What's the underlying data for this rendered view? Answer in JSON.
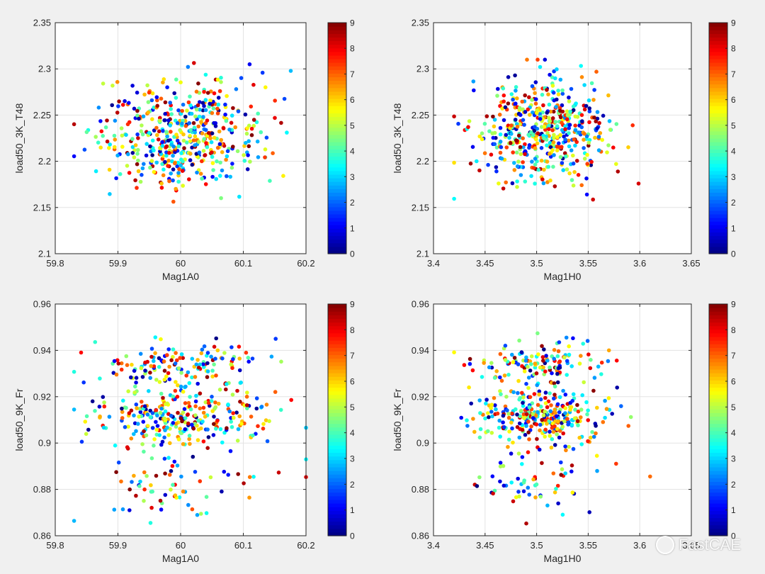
{
  "chart_data": [
    {
      "type": "scatter",
      "xlabel": "Mag1A0",
      "ylabel": "load50_3K_T48",
      "xlim": [
        59.8,
        60.2
      ],
      "ylim": [
        2.1,
        2.35
      ],
      "xticks": [
        "59.8",
        "59.9",
        "60",
        "60.1",
        "60.2"
      ],
      "yticks": [
        "2.1",
        "2.15",
        "2.2",
        "2.25",
        "2.3",
        "2.35"
      ],
      "colorbar": {
        "min": 0,
        "max": 9,
        "ticks": [
          "0",
          "1",
          "2",
          "3",
          "4",
          "5",
          "6",
          "7",
          "8",
          "9"
        ],
        "colormap": "jet"
      },
      "grid": true,
      "points": {
        "count": 500,
        "x_center": 60.0,
        "x_spread": 0.065,
        "y_center": 2.23,
        "y_spread": 0.028,
        "x_range": [
          59.83,
          60.2
        ],
        "y_range": [
          2.11,
          2.31
        ]
      }
    },
    {
      "type": "scatter",
      "xlabel": "Mag1H0",
      "ylabel": "load50_3K_T48",
      "xlim": [
        3.4,
        3.65
      ],
      "ylim": [
        2.1,
        2.35
      ],
      "xticks": [
        "3.4",
        "3.45",
        "3.5",
        "3.55",
        "3.6",
        "3.65"
      ],
      "yticks": [
        "2.1",
        "2.15",
        "2.2",
        "2.25",
        "2.3",
        "2.35"
      ],
      "colorbar": {
        "min": 0,
        "max": 9,
        "ticks": [
          "0",
          "1",
          "2",
          "3",
          "4",
          "5",
          "6",
          "7",
          "8",
          "9"
        ],
        "colormap": "jet"
      },
      "grid": true,
      "points": {
        "count": 500,
        "x_center": 3.505,
        "x_spread": 0.032,
        "y_center": 2.232,
        "y_spread": 0.027,
        "x_range": [
          3.42,
          3.61
        ],
        "y_range": [
          2.11,
          2.31
        ]
      }
    },
    {
      "type": "scatter",
      "xlabel": "Mag1A0",
      "ylabel": "load50_9K_Fr",
      "xlim": [
        59.8,
        60.2
      ],
      "ylim": [
        0.86,
        0.96
      ],
      "xticks": [
        "59.8",
        "59.9",
        "60",
        "60.1",
        "60.2"
      ],
      "yticks": [
        "0.86",
        "0.88",
        "0.9",
        "0.92",
        "0.94",
        "0.96"
      ],
      "colorbar": {
        "min": 0,
        "max": 9,
        "ticks": [
          "0",
          "1",
          "2",
          "3",
          "4",
          "5",
          "6",
          "7",
          "8",
          "9"
        ],
        "colormap": "jet"
      },
      "grid": true,
      "points": {
        "count": 500,
        "x_center": 60.0,
        "x_spread": 0.065,
        "clusters": [
          {
            "y_center": 0.912,
            "y_spread": 0.006,
            "share": 0.62
          },
          {
            "y_center": 0.934,
            "y_spread": 0.005,
            "share": 0.25
          },
          {
            "y_center": 0.883,
            "y_spread": 0.008,
            "share": 0.13
          }
        ],
        "x_range": [
          59.83,
          60.2
        ],
        "y_range": [
          0.864,
          0.951
        ]
      }
    },
    {
      "type": "scatter",
      "xlabel": "Mag1H0",
      "ylabel": "load50_9K_Fr",
      "xlim": [
        3.4,
        3.65
      ],
      "ylim": [
        0.86,
        0.96
      ],
      "xticks": [
        "3.4",
        "3.45",
        "3.5",
        "3.55",
        "3.6",
        "3.65"
      ],
      "yticks": [
        "0.86",
        "0.88",
        "0.9",
        "0.92",
        "0.94",
        "0.96"
      ],
      "colorbar": {
        "min": 0,
        "max": 9,
        "ticks": [
          "0",
          "1",
          "2",
          "3",
          "4",
          "5",
          "6",
          "7",
          "8",
          "9"
        ],
        "colormap": "jet"
      },
      "grid": true,
      "points": {
        "count": 500,
        "x_center": 3.505,
        "x_spread": 0.032,
        "clusters": [
          {
            "y_center": 0.912,
            "y_spread": 0.006,
            "share": 0.62
          },
          {
            "y_center": 0.934,
            "y_spread": 0.005,
            "share": 0.25
          },
          {
            "y_center": 0.883,
            "y_spread": 0.008,
            "share": 0.13
          }
        ],
        "x_range": [
          3.42,
          3.61
        ],
        "y_range": [
          0.864,
          0.951
        ]
      }
    }
  ],
  "watermark": {
    "text": "FastCAE",
    "icon": "wechat-icon"
  },
  "colors": {
    "background": "#f0f0f0",
    "axes_background": "#ffffff",
    "grid": "#e3e3e3",
    "axis": "#262626"
  }
}
